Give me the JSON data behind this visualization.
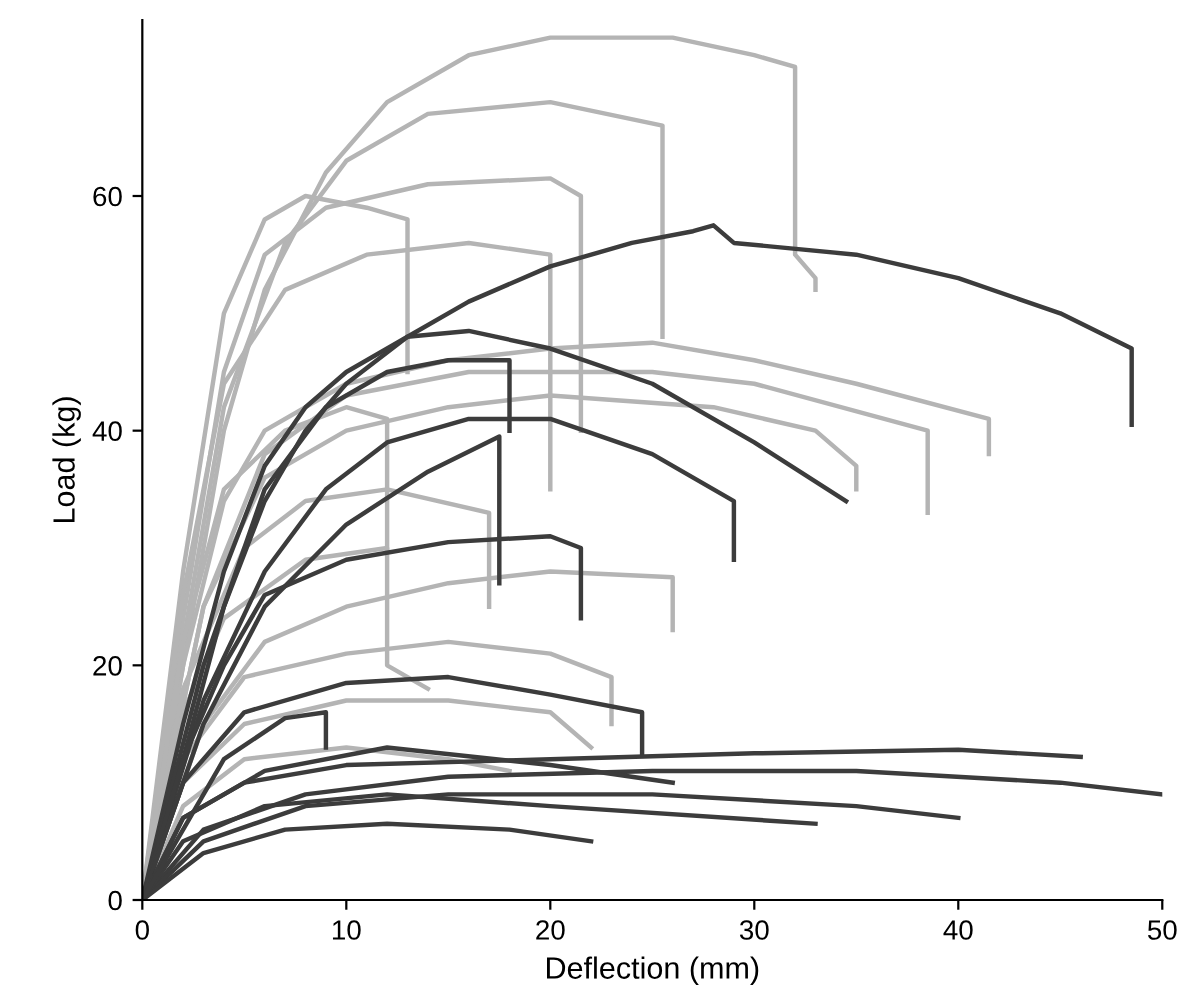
{
  "chart_data": {
    "type": "line",
    "xlabel": "Deflection (mm)",
    "ylabel": "Load (kg)",
    "xlim": [
      0,
      50
    ],
    "ylim": [
      0,
      75
    ],
    "xticks": [
      0,
      10,
      20,
      30,
      40,
      50
    ],
    "yticks": [
      0,
      20,
      40,
      60
    ],
    "grid": false,
    "legend": false,
    "series": [
      {
        "color": "#b4b4b4",
        "x": [
          0,
          2,
          4,
          6,
          9,
          12,
          16,
          20,
          26,
          30,
          32,
          32,
          33,
          33
        ],
        "values": [
          0,
          20,
          40,
          52,
          62,
          68,
          72,
          73.5,
          73.5,
          72,
          71,
          55,
          53,
          52
        ]
      },
      {
        "color": "#b4b4b4",
        "x": [
          0,
          2,
          4,
          7,
          10,
          14,
          20,
          25.5,
          25.5
        ],
        "values": [
          0,
          22,
          42,
          56,
          63,
          67,
          68,
          66,
          48
        ]
      },
      {
        "color": "#b4b4b4",
        "x": [
          0,
          2,
          4,
          6,
          9,
          14,
          20,
          21.5,
          21.5
        ],
        "values": [
          0,
          24,
          45,
          55,
          59,
          61,
          61.5,
          60,
          40
        ]
      },
      {
        "color": "#b4b4b4",
        "x": [
          0,
          2,
          4,
          6,
          8,
          11,
          13,
          13
        ],
        "values": [
          0,
          28,
          50,
          58,
          60,
          59,
          58,
          45
        ]
      },
      {
        "color": "#b4b4b4",
        "x": [
          0,
          2,
          4,
          7,
          11,
          16,
          20,
          20
        ],
        "values": [
          0,
          26,
          44,
          52,
          55,
          56,
          55,
          35
        ]
      },
      {
        "color": "#b4b4b4",
        "x": [
          0,
          2,
          4,
          6,
          10,
          15,
          20,
          25,
          30,
          35,
          41.5,
          41.5
        ],
        "values": [
          0,
          20,
          34,
          40,
          44,
          46,
          47,
          47.5,
          46,
          44,
          41,
          38
        ]
      },
      {
        "color": "#b4b4b4",
        "x": [
          0,
          3,
          6,
          10,
          16,
          25,
          30,
          38.5,
          38.5
        ],
        "values": [
          0,
          25,
          38,
          43,
          45,
          45,
          44,
          40,
          33
        ]
      },
      {
        "color": "#b4b4b4",
        "x": [
          0,
          3,
          6,
          10,
          15,
          20,
          28,
          33,
          35,
          35
        ],
        "values": [
          0,
          25,
          36,
          40,
          42,
          43,
          42,
          40,
          37,
          35
        ]
      },
      {
        "color": "#b4b4b4",
        "x": [
          0,
          2,
          5,
          8,
          12,
          17,
          17
        ],
        "values": [
          0,
          18,
          30,
          34,
          35,
          33,
          25
        ]
      },
      {
        "color": "#b4b4b4",
        "x": [
          0,
          3,
          6,
          10,
          15,
          20,
          26,
          26
        ],
        "values": [
          0,
          15,
          22,
          25,
          27,
          28,
          27.5,
          23
        ]
      },
      {
        "color": "#b4b4b4",
        "x": [
          0,
          2,
          5,
          10,
          15,
          20,
          23,
          23
        ],
        "values": [
          0,
          12,
          19,
          21,
          22,
          21,
          19,
          15
        ]
      },
      {
        "color": "#b4b4b4",
        "x": [
          0,
          2,
          5,
          10,
          15,
          20,
          22
        ],
        "values": [
          0,
          10,
          15,
          17,
          17,
          16,
          13
        ]
      },
      {
        "color": "#b4b4b4",
        "x": [
          0,
          2,
          5,
          10,
          15,
          18
        ],
        "values": [
          0,
          8,
          12,
          13,
          12,
          11
        ]
      },
      {
        "color": "#b4b4b4",
        "x": [
          0,
          2,
          4,
          8,
          12,
          12,
          14
        ],
        "values": [
          0,
          16,
          24,
          29,
          30,
          20,
          18
        ]
      },
      {
        "color": "#b4b4b4",
        "x": [
          0,
          2,
          4,
          7,
          10,
          12,
          12
        ],
        "values": [
          0,
          22,
          35,
          40,
          42,
          41,
          30
        ]
      },
      {
        "color": "#3c3c3c",
        "x": [
          0,
          2,
          4,
          6,
          8,
          10,
          13,
          16,
          20,
          24,
          27,
          28,
          29,
          35,
          40,
          45,
          48.5,
          48.5
        ],
        "values": [
          0,
          12,
          25,
          34,
          40,
          44,
          48,
          51,
          54,
          56,
          57,
          57.5,
          56,
          55,
          53,
          50,
          47,
          40.5
        ]
      },
      {
        "color": "#3c3c3c",
        "x": [
          0,
          2,
          4,
          6,
          8,
          10,
          13,
          16,
          20,
          25,
          30,
          34.5
        ],
        "values": [
          0,
          15,
          28,
          37,
          42,
          45,
          48,
          48.5,
          47,
          44,
          39,
          34
        ]
      },
      {
        "color": "#3c3c3c",
        "x": [
          0,
          3,
          6,
          9,
          12,
          15,
          18,
          18
        ],
        "values": [
          0,
          20,
          35,
          42,
          45,
          46,
          46,
          40
        ]
      },
      {
        "color": "#3c3c3c",
        "x": [
          0,
          3,
          6,
          9,
          12,
          16,
          20,
          25,
          29,
          29
        ],
        "values": [
          0,
          17,
          28,
          35,
          39,
          41,
          41,
          38,
          34,
          29
        ]
      },
      {
        "color": "#3c3c3c",
        "x": [
          0,
          3,
          6,
          10,
          14,
          17.5,
          17.5
        ],
        "values": [
          0,
          15,
          25,
          32,
          36.5,
          39.5,
          27
        ]
      },
      {
        "color": "#3c3c3c",
        "x": [
          0,
          2,
          4,
          6,
          10,
          15,
          20,
          21.5,
          21.5
        ],
        "values": [
          0,
          12,
          20,
          26,
          29,
          30.5,
          31,
          30,
          24
        ]
      },
      {
        "color": "#3c3c3c",
        "x": [
          0,
          2,
          5,
          10,
          15,
          20,
          24.5,
          24.5
        ],
        "values": [
          0,
          10,
          16,
          18.5,
          19,
          17.5,
          16,
          12.5
        ]
      },
      {
        "color": "#3c3c3c",
        "x": [
          0,
          2,
          5,
          10,
          20,
          30,
          40,
          46
        ],
        "values": [
          0,
          7,
          10,
          11.5,
          12,
          12.5,
          12.8,
          12.2
        ]
      },
      {
        "color": "#3c3c3c",
        "x": [
          0,
          3,
          8,
          15,
          25,
          35,
          45,
          50
        ],
        "values": [
          0,
          6,
          9,
          10.5,
          11,
          11,
          10,
          9
        ]
      },
      {
        "color": "#3c3c3c",
        "x": [
          0,
          3,
          8,
          15,
          25,
          35,
          40
        ],
        "values": [
          0,
          5,
          8,
          9,
          9,
          8,
          7
        ]
      },
      {
        "color": "#3c3c3c",
        "x": [
          0,
          2,
          6,
          12,
          20,
          26
        ],
        "values": [
          0,
          7,
          11,
          13,
          11.5,
          10
        ]
      },
      {
        "color": "#3c3c3c",
        "x": [
          0,
          3,
          7,
          12,
          18,
          22
        ],
        "values": [
          0,
          4,
          6,
          6.5,
          6,
          5
        ]
      },
      {
        "color": "#3c3c3c",
        "x": [
          0,
          2,
          6,
          12,
          20,
          33
        ],
        "values": [
          0,
          5,
          8,
          9,
          8,
          6.5
        ]
      },
      {
        "color": "#3c3c3c",
        "x": [
          0,
          4,
          7,
          9,
          9
        ],
        "values": [
          0,
          12,
          15.5,
          16,
          13
        ]
      }
    ]
  }
}
